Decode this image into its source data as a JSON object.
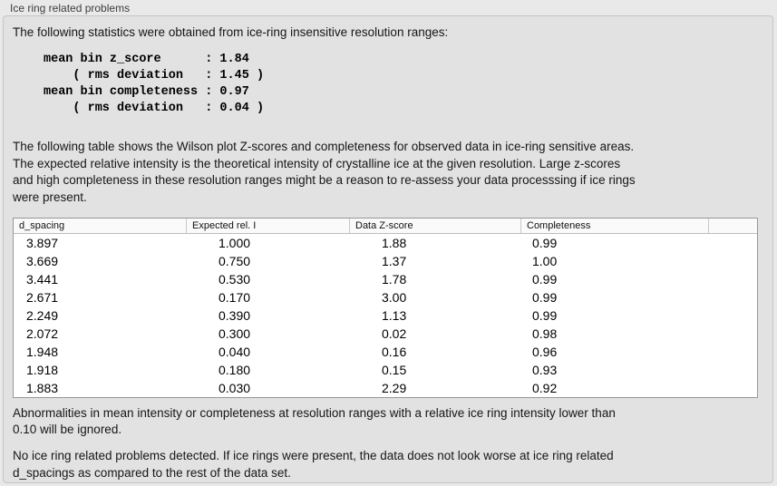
{
  "panel": {
    "title": "Ice ring related problems"
  },
  "intro": {
    "text": "The following statistics were obtained from ice-ring insensitive resolution ranges:"
  },
  "stats_block": {
    "text": "mean bin z_score      : 1.84\n    ( rms deviation   : 1.45 )\nmean bin completeness : 0.97\n    ( rms deviation   : 0.04 )",
    "mean_bin_z_score": "1.84",
    "z_score_rms_deviation": "1.45",
    "mean_bin_completeness": "0.97",
    "completeness_rms_deviation": "0.04"
  },
  "description": {
    "text": "The following table shows the Wilson plot Z-scores and completeness for observed data in ice-ring sensitive areas.\nThe expected relative intensity is the theoretical intensity of crystalline ice at the given resolution. Large z-scores\nand high completeness in these resolution ranges might be a reason to re-assess your data processsing if ice rings\nwere present."
  },
  "table": {
    "headers": [
      "d_spacing",
      "Expected rel. I",
      "Data Z-score",
      "Completeness",
      ""
    ],
    "rows": [
      [
        "3.897",
        "1.000",
        "1.88",
        "0.99"
      ],
      [
        "3.669",
        "0.750",
        "1.37",
        "1.00"
      ],
      [
        "3.441",
        "0.530",
        "1.78",
        "0.99"
      ],
      [
        "2.671",
        "0.170",
        "3.00",
        "0.99"
      ],
      [
        "2.249",
        "0.390",
        "1.13",
        "0.99"
      ],
      [
        "2.072",
        "0.300",
        "0.02",
        "0.98"
      ],
      [
        "1.948",
        "0.040",
        "0.16",
        "0.96"
      ],
      [
        "1.918",
        "0.180",
        "0.15",
        "0.93"
      ],
      [
        "1.883",
        "0.030",
        "2.29",
        "0.92"
      ]
    ]
  },
  "note": {
    "text": "Abnormalities in mean intensity or completeness at resolution ranges with a relative ice ring intensity lower than\n0.10 will be ignored."
  },
  "conclusion": {
    "text": "No ice ring related problems detected. If ice rings were present, the data does not look worse at ice ring related\nd_spacings as compared to the rest of the data set."
  },
  "colors": {
    "page_background": "#e9e9e9",
    "panel_background": "#e2e2e2",
    "panel_border": "#c5c5c5",
    "table_background": "#ffffff",
    "table_border": "#979797",
    "header_background": "#fafafa",
    "text": "#161616"
  }
}
